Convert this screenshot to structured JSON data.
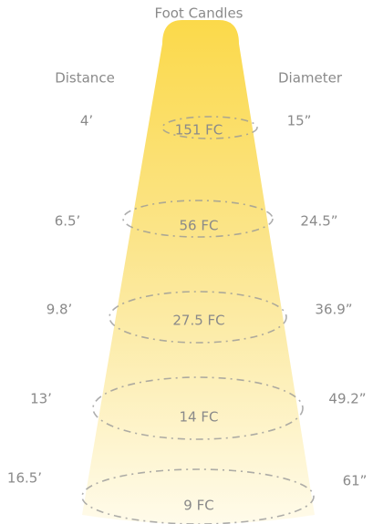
{
  "title": "Foot Candles",
  "headers": {
    "distance": "Distance",
    "diameter": "Diameter"
  },
  "rows": [
    {
      "distance": "4’",
      "fc": "151 FC",
      "diameter": "15”"
    },
    {
      "distance": "6.5’",
      "fc": "56 FC",
      "diameter": "24.5”"
    },
    {
      "distance": "9.8’",
      "fc": "27.5 FC",
      "diameter": "36.9”"
    },
    {
      "distance": "13’",
      "fc": "14 FC",
      "diameter": "49.2”"
    },
    {
      "distance": "16.5’",
      "fc": "9 FC",
      "diameter": "61”"
    }
  ]
}
